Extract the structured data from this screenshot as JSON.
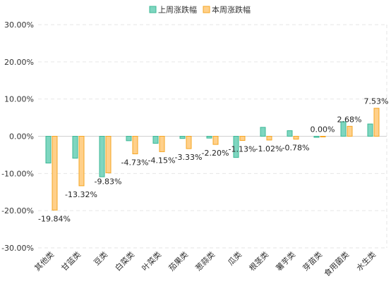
{
  "chart_data": {
    "type": "bar",
    "categories": [
      "其他类",
      "甘蓝类",
      "豆类",
      "白菜类",
      "叶菜类",
      "茄果类",
      "葱蒜类",
      "瓜类",
      "根茎类",
      "薯芋类",
      "芽苗类",
      "食用菌类",
      "水生类"
    ],
    "series": [
      {
        "name": "上周涨跌幅",
        "color": "#7ed6c0",
        "stroke": "#3cb896",
        "values": [
          -7.2,
          -5.9,
          -10.9,
          -1.2,
          -1.9,
          -0.6,
          -0.5,
          -5.7,
          2.4,
          1.5,
          -0.3,
          3.9,
          3.3
        ]
      },
      {
        "name": "本周涨跌幅",
        "color": "#ffd08a",
        "stroke": "#f5a623",
        "values": [
          -19.84,
          -13.32,
          -9.83,
          -4.73,
          -4.15,
          -3.33,
          -2.2,
          -1.13,
          -1.02,
          -0.78,
          0.0,
          2.68,
          7.53
        ]
      }
    ],
    "data_labels": [
      "-19.84%",
      "-13.32%",
      "-9.83%",
      "-4.73%",
      "-4.15%",
      "-3.33%",
      "-2.20%",
      "-1.13%",
      "-1.02%",
      "-0.78%",
      "0.00%",
      "2.68%",
      "7.53%"
    ],
    "ylim": [
      -30,
      30
    ],
    "yticks": [
      "30.00%",
      "20.00%",
      "10.00%",
      "0.00%",
      "-10.00%",
      "-20.00%",
      "-30.00%"
    ],
    "ytick_values": [
      30,
      20,
      10,
      0,
      -10,
      -20,
      -30
    ],
    "grid": true,
    "legend_position": "top-center"
  }
}
